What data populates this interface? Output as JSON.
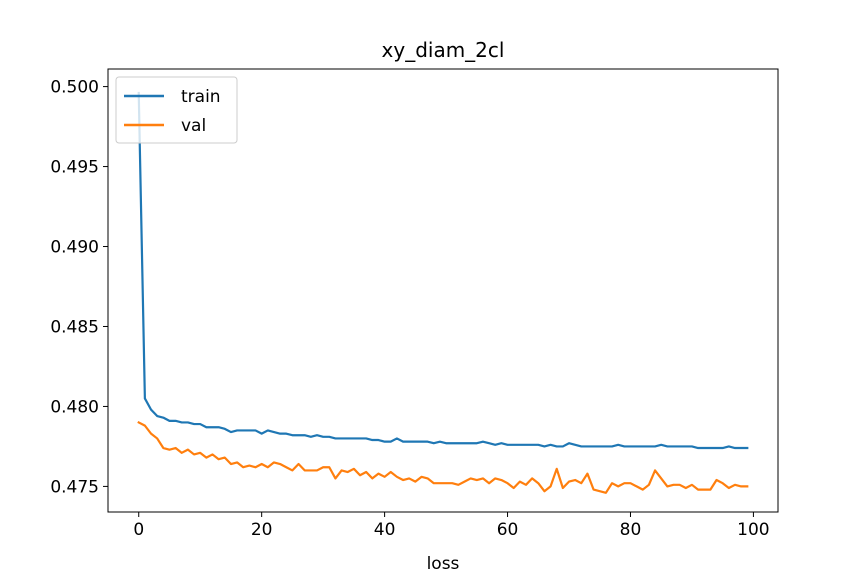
{
  "chart_data": {
    "type": "line",
    "title": "xy_diam_2cl",
    "xlabel": "loss",
    "ylabel": "",
    "xlim": [
      -5,
      104
    ],
    "ylim": [
      0.4734,
      0.5011
    ],
    "grid": false,
    "legend": {
      "placement": "upper-left",
      "entries": [
        "train",
        "val"
      ]
    },
    "xticks": [
      0,
      20,
      40,
      60,
      80,
      100
    ],
    "xtick_labels": [
      "0",
      "20",
      "40",
      "60",
      "80",
      "100"
    ],
    "yticks": [
      0.475,
      0.48,
      0.485,
      0.49,
      0.495,
      0.5
    ],
    "ytick_labels": [
      "0.475",
      "0.480",
      "0.485",
      "0.490",
      "0.495",
      "0.500"
    ],
    "series": [
      {
        "name": "train",
        "color": "#1f77b4",
        "x": [
          0,
          1,
          2,
          3,
          4,
          5,
          6,
          7,
          8,
          9,
          10,
          11,
          12,
          13,
          14,
          15,
          16,
          17,
          18,
          19,
          20,
          21,
          22,
          23,
          24,
          25,
          26,
          27,
          28,
          29,
          30,
          31,
          32,
          33,
          34,
          35,
          36,
          37,
          38,
          39,
          40,
          41,
          42,
          43,
          44,
          45,
          46,
          47,
          48,
          49,
          50,
          51,
          52,
          53,
          54,
          55,
          56,
          57,
          58,
          59,
          60,
          61,
          62,
          63,
          64,
          65,
          66,
          67,
          68,
          69,
          70,
          71,
          72,
          73,
          74,
          75,
          76,
          77,
          78,
          79,
          80,
          81,
          82,
          83,
          84,
          85,
          86,
          87,
          88,
          89,
          90,
          91,
          92,
          93,
          94,
          95,
          96,
          97,
          98,
          99
        ],
        "values": [
          0.4996,
          0.4805,
          0.4798,
          0.4794,
          0.4793,
          0.4791,
          0.4791,
          0.479,
          0.479,
          0.4789,
          0.4789,
          0.4787,
          0.4787,
          0.4787,
          0.4786,
          0.4784,
          0.4785,
          0.4785,
          0.4785,
          0.4785,
          0.4783,
          0.4785,
          0.4784,
          0.4783,
          0.4783,
          0.4782,
          0.4782,
          0.4782,
          0.4781,
          0.4782,
          0.4781,
          0.4781,
          0.478,
          0.478,
          0.478,
          0.478,
          0.478,
          0.478,
          0.4779,
          0.4779,
          0.4778,
          0.4778,
          0.478,
          0.4778,
          0.4778,
          0.4778,
          0.4778,
          0.4778,
          0.4777,
          0.4778,
          0.4777,
          0.4777,
          0.4777,
          0.4777,
          0.4777,
          0.4777,
          0.4778,
          0.4777,
          0.4776,
          0.4777,
          0.4776,
          0.4776,
          0.4776,
          0.4776,
          0.4776,
          0.4776,
          0.4775,
          0.4776,
          0.4775,
          0.4775,
          0.4777,
          0.4776,
          0.4775,
          0.4775,
          0.4775,
          0.4775,
          0.4775,
          0.4775,
          0.4776,
          0.4775,
          0.4775,
          0.4775,
          0.4775,
          0.4775,
          0.4775,
          0.4776,
          0.4775,
          0.4775,
          0.4775,
          0.4775,
          0.4775,
          0.4774,
          0.4774,
          0.4774,
          0.4774,
          0.4774,
          0.4775,
          0.4774,
          0.4774,
          0.4774
        ]
      },
      {
        "name": "val",
        "color": "#ff7f0e",
        "x": [
          0,
          1,
          2,
          3,
          4,
          5,
          6,
          7,
          8,
          9,
          10,
          11,
          12,
          13,
          14,
          15,
          16,
          17,
          18,
          19,
          20,
          21,
          22,
          23,
          24,
          25,
          26,
          27,
          28,
          29,
          30,
          31,
          32,
          33,
          34,
          35,
          36,
          37,
          38,
          39,
          40,
          41,
          42,
          43,
          44,
          45,
          46,
          47,
          48,
          49,
          50,
          51,
          52,
          53,
          54,
          55,
          56,
          57,
          58,
          59,
          60,
          61,
          62,
          63,
          64,
          65,
          66,
          67,
          68,
          69,
          70,
          71,
          72,
          73,
          74,
          75,
          76,
          77,
          78,
          79,
          80,
          81,
          82,
          83,
          84,
          85,
          86,
          87,
          88,
          89,
          90,
          91,
          92,
          93,
          94,
          95,
          96,
          97,
          98,
          99
        ],
        "values": [
          0.479,
          0.4788,
          0.4783,
          0.478,
          0.4774,
          0.4773,
          0.4774,
          0.4771,
          0.4773,
          0.477,
          0.4771,
          0.4768,
          0.477,
          0.4767,
          0.4768,
          0.4764,
          0.4765,
          0.4762,
          0.4763,
          0.4762,
          0.4764,
          0.4762,
          0.4765,
          0.4764,
          0.4762,
          0.476,
          0.4764,
          0.476,
          0.476,
          0.476,
          0.4762,
          0.4762,
          0.4755,
          0.476,
          0.4759,
          0.4761,
          0.4757,
          0.4759,
          0.4755,
          0.4758,
          0.4756,
          0.4759,
          0.4756,
          0.4754,
          0.4755,
          0.4753,
          0.4756,
          0.4755,
          0.4752,
          0.4752,
          0.4752,
          0.4752,
          0.4751,
          0.4753,
          0.4755,
          0.4754,
          0.4755,
          0.4752,
          0.4755,
          0.4754,
          0.4752,
          0.4749,
          0.4753,
          0.4751,
          0.4755,
          0.4752,
          0.4747,
          0.475,
          0.4761,
          0.4749,
          0.4753,
          0.4754,
          0.4752,
          0.4758,
          0.4748,
          0.4747,
          0.4746,
          0.4752,
          0.475,
          0.4752,
          0.4752,
          0.475,
          0.4748,
          0.4751,
          0.476,
          0.4755,
          0.475,
          0.4751,
          0.4751,
          0.4749,
          0.4751,
          0.4748,
          0.4748,
          0.4748,
          0.4754,
          0.4752,
          0.4749,
          0.4751,
          0.475,
          0.475
        ]
      }
    ]
  }
}
